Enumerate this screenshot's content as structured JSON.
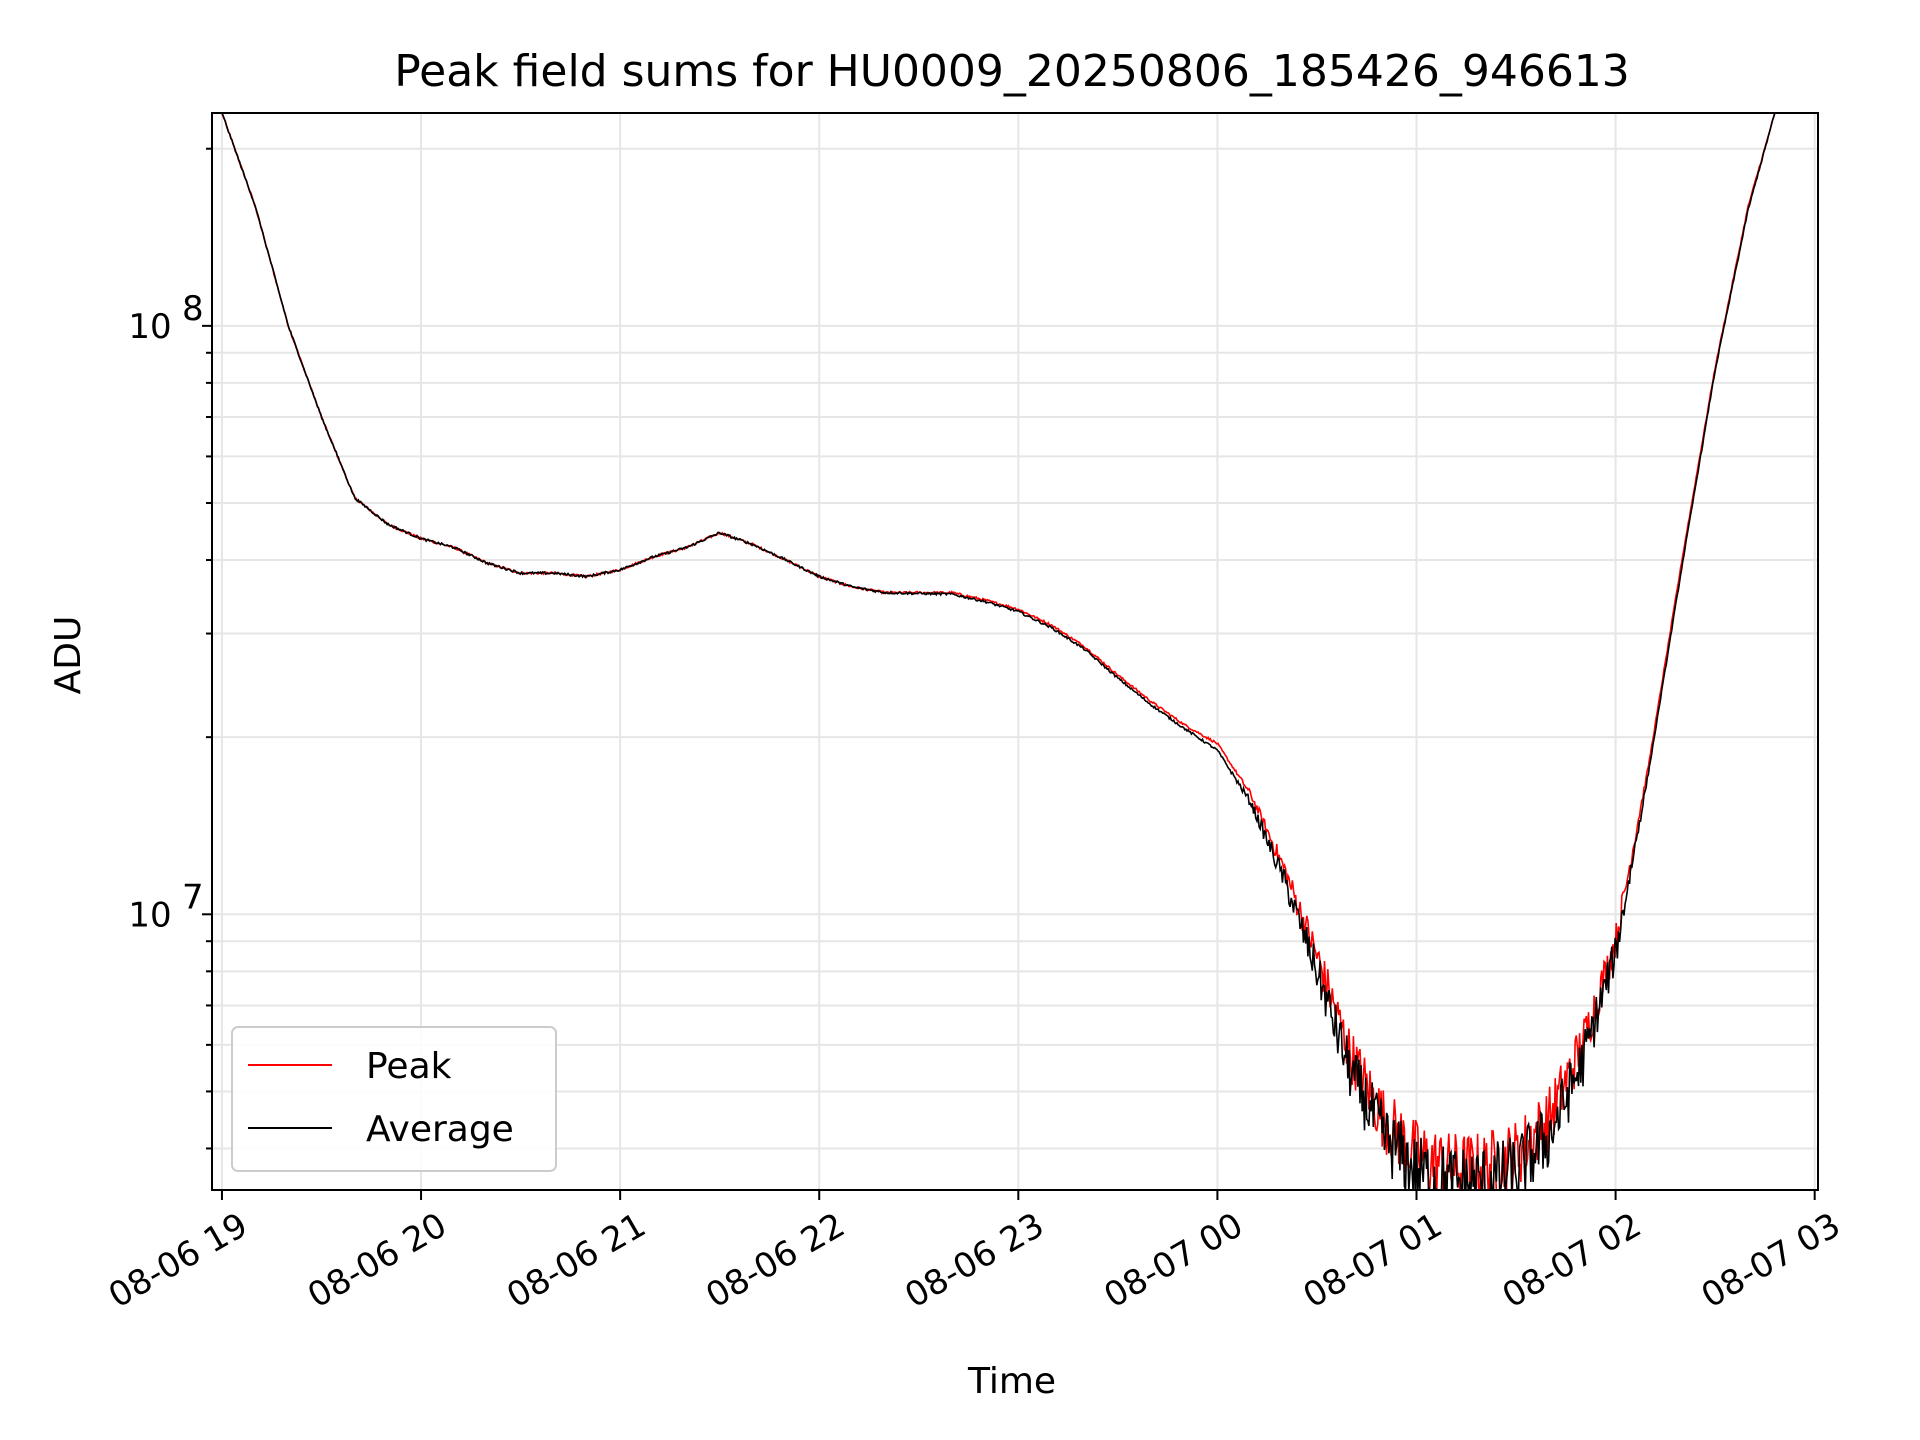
{
  "chart_data": {
    "type": "line",
    "title": "Peak field sums for HU0009_20250806_185426_946613",
    "xlabel": "Time",
    "ylabel": "ADU",
    "yscale": "log",
    "grid": true,
    "legend_position": "lower-left",
    "xlim": [
      "2025-08-06 18:57",
      "2025-08-07 03:01"
    ],
    "ylim": [
      3400000,
      230000000
    ],
    "x_ticks": [
      "08-06 19",
      "08-06 20",
      "08-06 21",
      "08-06 22",
      "08-06 23",
      "08-07 00",
      "08-07 01",
      "08-07 02",
      "08-07 03"
    ],
    "y_ticks": [
      {
        "value": 10000000,
        "base": "10",
        "exp": "7"
      },
      {
        "value": 100000000,
        "base": "10",
        "exp": "8"
      }
    ],
    "series": [
      {
        "name": "Peak",
        "color": "#ff0000",
        "noise": "high",
        "points": [
          [
            "2025-08-06 19:00",
            230000000
          ],
          [
            "2025-08-06 19:10",
            160000000
          ],
          [
            "2025-08-06 19:20",
            100000000
          ],
          [
            "2025-08-06 19:30",
            70000000
          ],
          [
            "2025-08-06 19:40",
            51000000
          ],
          [
            "2025-08-06 19:50",
            46000000
          ],
          [
            "2025-08-06 20:00",
            43500000
          ],
          [
            "2025-08-06 20:10",
            42000000
          ],
          [
            "2025-08-06 20:20",
            39500000
          ],
          [
            "2025-08-06 20:30",
            38000000
          ],
          [
            "2025-08-06 20:40",
            38000000
          ],
          [
            "2025-08-06 20:50",
            37500000
          ],
          [
            "2025-08-06 21:00",
            38500000
          ],
          [
            "2025-08-06 21:10",
            40500000
          ],
          [
            "2025-08-06 21:20",
            42000000
          ],
          [
            "2025-08-06 21:30",
            44500000
          ],
          [
            "2025-08-06 21:40",
            42500000
          ],
          [
            "2025-08-06 21:50",
            40000000
          ],
          [
            "2025-08-06 22:00",
            37500000
          ],
          [
            "2025-08-06 22:10",
            36000000
          ],
          [
            "2025-08-06 22:20",
            35200000
          ],
          [
            "2025-08-06 22:40",
            35200000
          ],
          [
            "2025-08-06 22:50",
            34200000
          ],
          [
            "2025-08-06 23:00",
            33000000
          ],
          [
            "2025-08-06 23:10",
            31000000
          ],
          [
            "2025-08-06 23:20",
            28500000
          ],
          [
            "2025-08-06 23:30",
            25500000
          ],
          [
            "2025-08-06 23:40",
            23000000
          ],
          [
            "2025-08-06 23:50",
            21000000
          ],
          [
            "2025-08-07 00:00",
            19500000
          ],
          [
            "2025-08-07 00:10",
            16000000
          ],
          [
            "2025-08-07 00:20",
            12000000
          ],
          [
            "2025-08-07 00:30",
            8500000
          ],
          [
            "2025-08-07 00:40",
            5800000
          ],
          [
            "2025-08-07 00:50",
            4500000
          ],
          [
            "2025-08-07 01:00",
            3900000
          ],
          [
            "2025-08-07 01:10",
            3700000
          ],
          [
            "2025-08-07 01:20",
            3700000
          ],
          [
            "2025-08-07 01:30",
            3900000
          ],
          [
            "2025-08-07 01:40",
            4500000
          ],
          [
            "2025-08-07 01:50",
            6000000
          ],
          [
            "2025-08-07 02:00",
            9000000
          ],
          [
            "2025-08-07 02:10",
            18000000
          ],
          [
            "2025-08-07 02:20",
            40000000
          ],
          [
            "2025-08-07 02:30",
            85000000
          ],
          [
            "2025-08-07 02:40",
            160000000
          ],
          [
            "2025-08-07 02:48",
            230000000
          ]
        ]
      },
      {
        "name": "Average",
        "color": "#000000",
        "noise": "high",
        "points": [
          [
            "2025-08-06 19:00",
            230000000
          ],
          [
            "2025-08-06 19:10",
            160000000
          ],
          [
            "2025-08-06 19:20",
            100000000
          ],
          [
            "2025-08-06 19:30",
            70000000
          ],
          [
            "2025-08-06 19:40",
            51000000
          ],
          [
            "2025-08-06 19:50",
            46000000
          ],
          [
            "2025-08-06 20:00",
            43500000
          ],
          [
            "2025-08-06 20:10",
            42000000
          ],
          [
            "2025-08-06 20:20",
            39500000
          ],
          [
            "2025-08-06 20:30",
            38000000
          ],
          [
            "2025-08-06 20:40",
            38000000
          ],
          [
            "2025-08-06 20:50",
            37500000
          ],
          [
            "2025-08-06 21:00",
            38500000
          ],
          [
            "2025-08-06 21:10",
            40500000
          ],
          [
            "2025-08-06 21:20",
            42000000
          ],
          [
            "2025-08-06 21:30",
            44500000
          ],
          [
            "2025-08-06 21:40",
            42500000
          ],
          [
            "2025-08-06 21:50",
            40000000
          ],
          [
            "2025-08-06 22:00",
            37500000
          ],
          [
            "2025-08-06 22:10",
            36000000
          ],
          [
            "2025-08-06 22:20",
            35200000
          ],
          [
            "2025-08-06 22:40",
            35000000
          ],
          [
            "2025-08-06 22:50",
            34000000
          ],
          [
            "2025-08-06 23:00",
            32700000
          ],
          [
            "2025-08-06 23:10",
            30700000
          ],
          [
            "2025-08-06 23:20",
            28200000
          ],
          [
            "2025-08-06 23:30",
            25200000
          ],
          [
            "2025-08-06 23:40",
            22700000
          ],
          [
            "2025-08-06 23:50",
            20700000
          ],
          [
            "2025-08-07 00:00",
            19000000
          ],
          [
            "2025-08-07 00:10",
            15500000
          ],
          [
            "2025-08-07 00:20",
            11500000
          ],
          [
            "2025-08-07 00:30",
            8000000
          ],
          [
            "2025-08-07 00:40",
            5400000
          ],
          [
            "2025-08-07 00:50",
            4200000
          ],
          [
            "2025-08-07 01:00",
            3650000
          ],
          [
            "2025-08-07 01:10",
            3500000
          ],
          [
            "2025-08-07 01:20",
            3500000
          ],
          [
            "2025-08-07 01:30",
            3650000
          ],
          [
            "2025-08-07 01:40",
            4200000
          ],
          [
            "2025-08-07 01:50",
            5600000
          ],
          [
            "2025-08-07 02:00",
            8600000
          ],
          [
            "2025-08-07 02:10",
            17500000
          ],
          [
            "2025-08-07 02:20",
            39000000
          ],
          [
            "2025-08-07 02:30",
            84000000
          ],
          [
            "2025-08-07 02:40",
            158000000
          ],
          [
            "2025-08-07 02:48",
            230000000
          ]
        ]
      }
    ]
  }
}
